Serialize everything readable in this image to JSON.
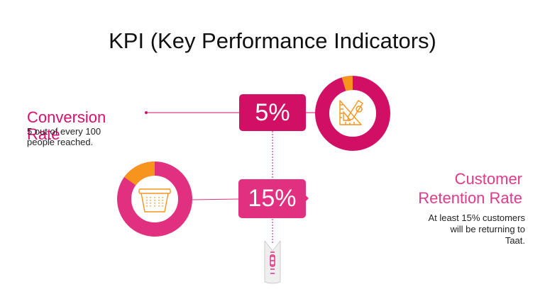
{
  "title": "KPI (Key Performance Indicators)",
  "conversion": {
    "heading": "Conversion Rate",
    "description": "5 out of every 100 people reached.",
    "value": "5%",
    "icon": "pencil-ruler-icon"
  },
  "retention": {
    "heading_line1": "Customer",
    "heading_line2": "Retention Rate",
    "description": "At least 15% customers\nwill be  returning  to\nTaat.",
    "value": "15%",
    "icon": "basket-icon"
  },
  "colors": {
    "magenta": "#d11065",
    "pink": "#e0307f",
    "orange": "#f7941d"
  },
  "decoration": {
    "zipper_icon": "zipper-icon"
  }
}
